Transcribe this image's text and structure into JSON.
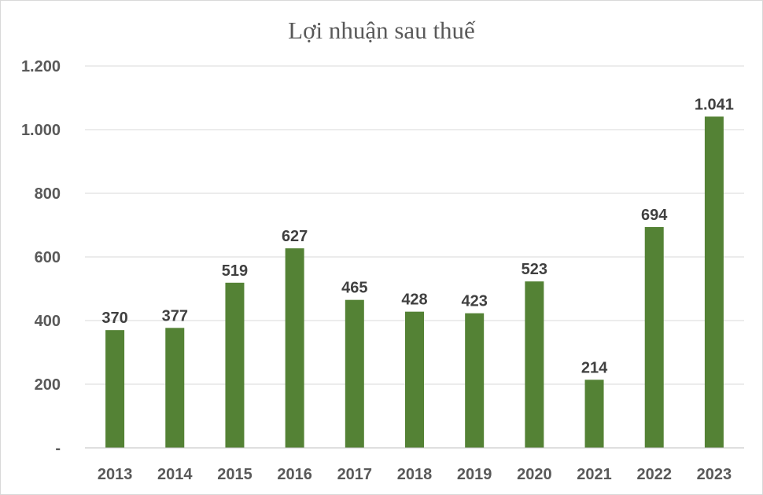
{
  "chart_data": {
    "type": "bar",
    "title": "Lợi nhuận sau thuế",
    "xlabel": "",
    "ylabel": "",
    "categories": [
      "2013",
      "2014",
      "2015",
      "2016",
      "2017",
      "2018",
      "2019",
      "2020",
      "2021",
      "2022",
      "2023"
    ],
    "values": [
      370,
      377,
      519,
      627,
      465,
      428,
      423,
      523,
      214,
      694,
      1041
    ],
    "data_labels": [
      "370",
      "377",
      "519",
      "627",
      "465",
      "428",
      "423",
      "523",
      "214",
      "694",
      "1.041"
    ],
    "ylim": [
      0,
      1200
    ],
    "yticks": [
      0,
      200,
      400,
      600,
      800,
      1000,
      1200
    ],
    "ytick_labels": [
      "-",
      "200",
      "400",
      "600",
      "800",
      "1.000",
      "1.200"
    ],
    "grid": true,
    "legend": "none",
    "bar_color": "#548235"
  }
}
